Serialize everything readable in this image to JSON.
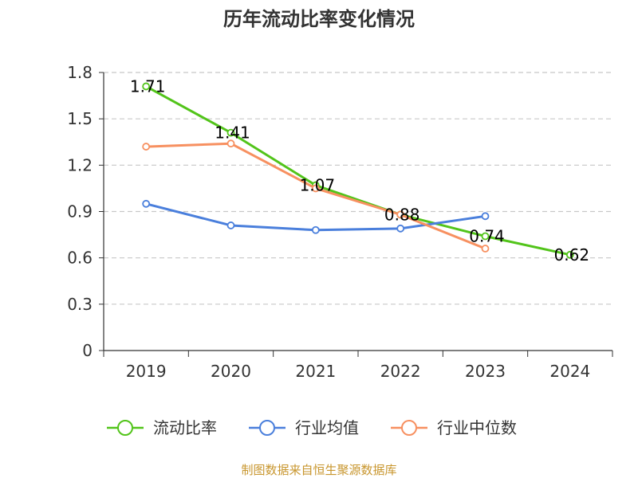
{
  "chart_data": {
    "type": "line",
    "title": "历年流动比率变化情况",
    "categories": [
      "2019",
      "2020",
      "2021",
      "2022",
      "2023",
      "2024"
    ],
    "ylim": [
      0,
      1.8
    ],
    "yticks": [
      "0",
      "0.3",
      "0.6",
      "0.9",
      "1.2",
      "1.5",
      "1.8"
    ],
    "grid": true,
    "legend_position": "bottom",
    "series": [
      {
        "name": "流动比率",
        "color": "#52c41a",
        "values": [
          1.71,
          1.41,
          1.07,
          0.88,
          0.74,
          0.62
        ],
        "labels": [
          "1.71",
          "1.41",
          "1.07",
          "0.88",
          "0.74",
          "0.62"
        ]
      },
      {
        "name": "行业均值",
        "color": "#4a7fdc",
        "values": [
          0.95,
          0.81,
          0.78,
          0.79,
          0.87,
          null
        ]
      },
      {
        "name": "行业中位数",
        "color": "#f79060",
        "values": [
          1.32,
          1.34,
          1.05,
          0.88,
          0.66,
          null
        ]
      }
    ],
    "source": "制图数据来自恒生聚源数据库"
  }
}
